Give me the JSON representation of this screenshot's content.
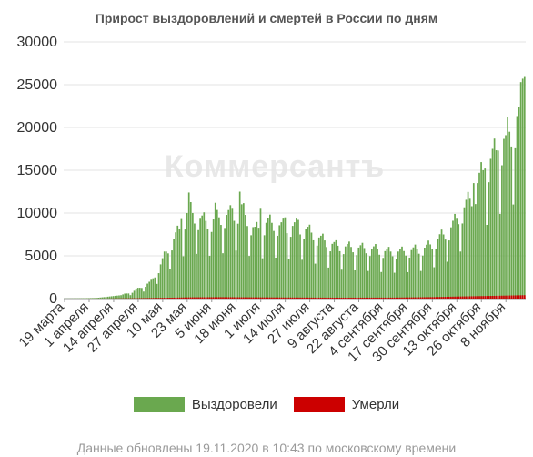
{
  "chart_data": {
    "type": "bar",
    "title": "Прирост выздоровлений и смертей в России по дням",
    "watermark": "Коммерсантъ",
    "ylim": [
      0,
      30000
    ],
    "yticks": [
      "30000",
      "25000",
      "20000",
      "15000",
      "10000",
      "5000",
      "0"
    ],
    "ytick_values": [
      30000,
      25000,
      20000,
      15000,
      10000,
      5000,
      0
    ],
    "x_start": "2020-03-19",
    "x_end": "2020-11-18",
    "xtick_labels": [
      "19 марта",
      "1 апреля",
      "14 апреля",
      "27 апреля",
      "10 мая",
      "23 мая",
      "5 июня",
      "18 июня",
      "1 июля",
      "14 июля",
      "27 июля",
      "9 августа",
      "22 августа",
      "4 сентября",
      "17 сентября",
      "30 сентября",
      "13 октября",
      "26 октября",
      "8 ноября"
    ],
    "grid": true,
    "legend_position": "bottom",
    "series": [
      {
        "name": "Выздоровели",
        "color": "#6aa84f",
        "anchors": [
          [
            "2020-03-19",
            10
          ],
          [
            "2020-03-28",
            40
          ],
          [
            "2020-04-05",
            80
          ],
          [
            "2020-04-10",
            200
          ],
          [
            "2020-04-18",
            400
          ],
          [
            "2020-04-24",
            800
          ],
          [
            "2020-04-30",
            1500
          ],
          [
            "2020-05-04",
            2000
          ],
          [
            "2020-05-08",
            3500
          ],
          [
            "2020-05-12",
            5500
          ],
          [
            "2020-05-16",
            7000
          ],
          [
            "2020-05-20",
            8500
          ],
          [
            "2020-05-24",
            10500
          ],
          [
            "2020-05-28",
            9500
          ],
          [
            "2020-06-03",
            9000
          ],
          [
            "2020-06-09",
            9500
          ],
          [
            "2020-06-16",
            10000
          ],
          [
            "2020-06-21",
            10500
          ],
          [
            "2020-06-28",
            8000
          ],
          [
            "2020-07-05",
            9000
          ],
          [
            "2020-07-12",
            8500
          ],
          [
            "2020-07-20",
            8500
          ],
          [
            "2020-07-26",
            8000
          ],
          [
            "2020-08-02",
            7000
          ],
          [
            "2020-08-10",
            6200
          ],
          [
            "2020-08-20",
            6000
          ],
          [
            "2020-08-31",
            5800
          ],
          [
            "2020-09-06",
            5500
          ],
          [
            "2020-09-13",
            5500
          ],
          [
            "2020-09-20",
            5700
          ],
          [
            "2020-09-27",
            6000
          ],
          [
            "2020-10-03",
            7000
          ],
          [
            "2020-10-09",
            8000
          ],
          [
            "2020-10-15",
            10000
          ],
          [
            "2020-10-21",
            12000
          ],
          [
            "2020-10-27",
            15000
          ],
          [
            "2020-11-02",
            17000
          ],
          [
            "2020-11-08",
            19000
          ],
          [
            "2020-11-12",
            20000
          ],
          [
            "2020-11-15",
            22000
          ],
          [
            "2020-11-18",
            25000
          ]
        ],
        "peaks": [
          [
            "2020-05-20",
            9300
          ],
          [
            "2020-05-24",
            12400
          ],
          [
            "2020-06-07",
            11200
          ],
          [
            "2020-06-16",
            10500
          ],
          [
            "2020-06-20",
            12500
          ],
          [
            "2020-07-01",
            10500
          ],
          [
            "2020-07-14",
            9500
          ],
          [
            "2020-07-21",
            9200
          ],
          [
            "2020-10-22",
            13500
          ],
          [
            "2020-10-28",
            15200
          ],
          [
            "2020-11-04",
            17300
          ],
          [
            "2020-11-08",
            19100
          ],
          [
            "2020-11-15",
            22400
          ],
          [
            "2020-11-17",
            25700
          ],
          [
            "2020-11-18",
            25900
          ]
        ]
      },
      {
        "name": "Умерли",
        "color": "#cc0000",
        "anchors": [
          [
            "2020-03-19",
            0
          ],
          [
            "2020-04-10",
            5
          ],
          [
            "2020-04-25",
            40
          ],
          [
            "2020-05-10",
            90
          ],
          [
            "2020-05-25",
            150
          ],
          [
            "2020-06-10",
            170
          ],
          [
            "2020-06-25",
            150
          ],
          [
            "2020-07-15",
            130
          ],
          [
            "2020-08-10",
            110
          ],
          [
            "2020-09-10",
            120
          ],
          [
            "2020-10-01",
            180
          ],
          [
            "2020-10-15",
            250
          ],
          [
            "2020-11-01",
            320
          ],
          [
            "2020-11-18",
            400
          ]
        ]
      }
    ]
  },
  "footer": "Данные обновлены 19.11.2020 в 10:43 по московскому времени"
}
